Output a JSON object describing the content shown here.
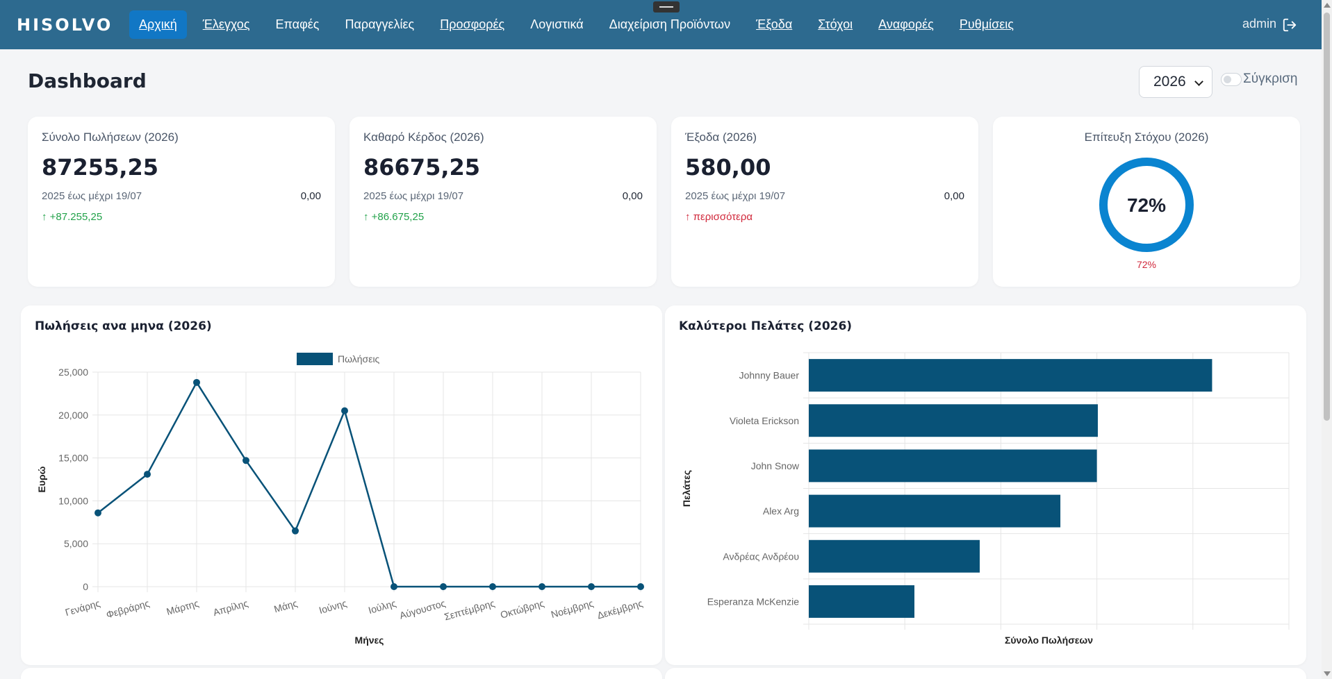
{
  "brand": "HISOLVO",
  "nav": [
    {
      "label": "Αρχική",
      "active": true
    },
    {
      "label": "Έλεγχος"
    },
    {
      "label": "Επαφές",
      "plain": true
    },
    {
      "label": "Παραγγελίες",
      "plain": true
    },
    {
      "label": "Προσφορές"
    },
    {
      "label": "Λογιστικά",
      "plain": true
    },
    {
      "label": "Διαχείριση Προϊόντων",
      "plain": true
    },
    {
      "label": "Έξοδα"
    },
    {
      "label": "Στόχοι"
    },
    {
      "label": "Αναφορές"
    },
    {
      "label": "Ρυθμίσεις"
    }
  ],
  "user": "admin",
  "page_title": "Dashboard",
  "year_select": "2026",
  "compare_label": "Σύγκριση",
  "kpis": [
    {
      "label": "Σύνολο Πωλήσεων (2026)",
      "value": "87255,25",
      "prev_label": "2025 έως μέχρι 19/07",
      "prev_value": "0,00",
      "change": "+87.255,25",
      "trend": "up"
    },
    {
      "label": "Καθαρό Κέρδος (2026)",
      "value": "86675,25",
      "prev_label": "2025 έως μέχρι 19/07",
      "prev_value": "0,00",
      "change": "+86.675,25",
      "trend": "up"
    },
    {
      "label": "Έξοδα (2026)",
      "value": "580,00",
      "prev_label": "2025 έως μέχρι 19/07",
      "prev_value": "0,00",
      "change": "περισσότερα",
      "trend": "warn"
    }
  ],
  "goal": {
    "label": "Επίτευξη Στόχου (2026)",
    "center": "72%",
    "below": "72%",
    "fraction": 0.72
  },
  "colors": {
    "nav_bg": "#2d6a8f",
    "accent": "#0a84d0",
    "series": "#085278",
    "up": "#22a24a",
    "warn": "#d0273a"
  },
  "chart_data": [
    {
      "type": "line",
      "title": "Πωλήσεις ανα μηνα (2026)",
      "legend": "Πωλήσεις",
      "xlabel": "Μήνες",
      "ylabel": "Ευρώ",
      "categories": [
        "Γενάρης",
        "Φεβράρης",
        "Μάρτης",
        "Απρίλης",
        "Μάης",
        "Ιούνης",
        "Ιούλης",
        "Αύγουστος",
        "Σεπτέμβρης",
        "Οκτώβρης",
        "Νοέμβρης",
        "Δεκέμβρης"
      ],
      "values": [
        8600,
        13100,
        23800,
        14700,
        6500,
        20500,
        0,
        0,
        0,
        0,
        0,
        0
      ],
      "ylim": [
        0,
        25000
      ],
      "yticks": [
        "0",
        "5,000",
        "10,000",
        "15,000",
        "20,000",
        "25,000"
      ],
      "grid": true,
      "legend_position": "top"
    },
    {
      "type": "bar",
      "orientation": "horizontal",
      "title": "Καλύτεροι Πελάτες (2026)",
      "xlabel": "Σύνολο Πωλήσεων",
      "ylabel": "Πελάτες",
      "categories": [
        "Johnny Bauer",
        "Violeta Erickson",
        "John Snow",
        "Alex Arg",
        "Ανδρέας Ανδρέου",
        "Esperanza McKenzie"
      ],
      "values": [
        4200,
        3010,
        3000,
        2620,
        1780,
        1100
      ],
      "xlim": [
        0,
        5000
      ],
      "grid": true
    }
  ]
}
